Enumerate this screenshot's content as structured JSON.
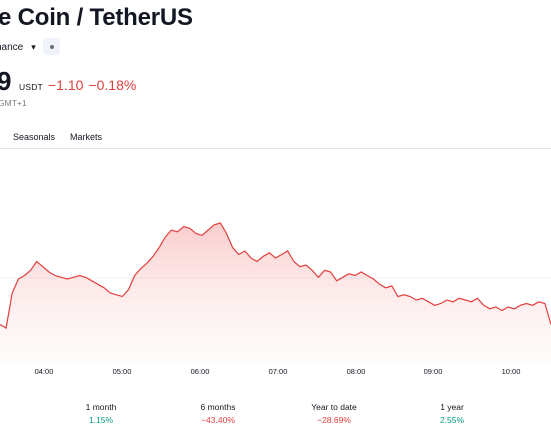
{
  "header": {
    "title": "e Coin / TetherUS",
    "exchange": "nance",
    "chevron": "▾",
    "status_icon": "dot-icon"
  },
  "quote": {
    "price": "9",
    "unit": "USDT",
    "change": "−1.10",
    "change_percent": "−0.18%",
    "timezone": "GMT+1"
  },
  "tabs": [
    {
      "label": "Seasonals"
    },
    {
      "label": "Markets"
    }
  ],
  "chart_data": {
    "type": "area",
    "line_color": "#e0403f",
    "x_ticks": [
      "04:00",
      "05:00",
      "06:00",
      "07:00",
      "08:00",
      "09:00",
      "10:00"
    ],
    "series_shape": [
      [
        0,
        0.22
      ],
      [
        0.5,
        0.2
      ],
      [
        1,
        0.4
      ],
      [
        1.5,
        0.48
      ],
      [
        2,
        0.5
      ],
      [
        2.5,
        0.53
      ],
      [
        3,
        0.58
      ],
      [
        3.5,
        0.55
      ],
      [
        4,
        0.52
      ],
      [
        4.5,
        0.5
      ],
      [
        5,
        0.49
      ],
      [
        5.5,
        0.48
      ],
      [
        6,
        0.49
      ],
      [
        6.5,
        0.5
      ],
      [
        7,
        0.49
      ],
      [
        7.5,
        0.47
      ],
      [
        8,
        0.45
      ],
      [
        8.5,
        0.43
      ],
      [
        9,
        0.4
      ],
      [
        9.5,
        0.39
      ],
      [
        10,
        0.38
      ],
      [
        10.5,
        0.42
      ],
      [
        11,
        0.5
      ],
      [
        11.5,
        0.54
      ],
      [
        12,
        0.57
      ],
      [
        12.5,
        0.61
      ],
      [
        13,
        0.66
      ],
      [
        13.5,
        0.72
      ],
      [
        14,
        0.76
      ],
      [
        14.5,
        0.75
      ],
      [
        15,
        0.78
      ],
      [
        15.5,
        0.77
      ],
      [
        16,
        0.74
      ],
      [
        16.5,
        0.73
      ],
      [
        17,
        0.76
      ],
      [
        17.5,
        0.79
      ],
      [
        18,
        0.8
      ],
      [
        18.5,
        0.74
      ],
      [
        19,
        0.66
      ],
      [
        19.5,
        0.62
      ],
      [
        20,
        0.64
      ],
      [
        20.5,
        0.6
      ],
      [
        21,
        0.58
      ],
      [
        21.5,
        0.61
      ],
      [
        22,
        0.63
      ],
      [
        22.5,
        0.6
      ],
      [
        23,
        0.62
      ],
      [
        23.5,
        0.64
      ],
      [
        24,
        0.58
      ],
      [
        24.5,
        0.55
      ],
      [
        25,
        0.56
      ],
      [
        25.5,
        0.53
      ],
      [
        26,
        0.49
      ],
      [
        26.5,
        0.53
      ],
      [
        27,
        0.52
      ],
      [
        27.5,
        0.47
      ],
      [
        28,
        0.49
      ],
      [
        28.5,
        0.51
      ],
      [
        29,
        0.5
      ],
      [
        29.5,
        0.52
      ],
      [
        30,
        0.5
      ],
      [
        30.5,
        0.48
      ],
      [
        31,
        0.45
      ],
      [
        31.5,
        0.43
      ],
      [
        32,
        0.44
      ],
      [
        32.5,
        0.38
      ],
      [
        33,
        0.39
      ],
      [
        33.5,
        0.38
      ],
      [
        34,
        0.36
      ],
      [
        34.5,
        0.37
      ],
      [
        35,
        0.35
      ],
      [
        35.5,
        0.33
      ],
      [
        36,
        0.34
      ],
      [
        36.5,
        0.36
      ],
      [
        37,
        0.35
      ],
      [
        37.5,
        0.37
      ],
      [
        38,
        0.36
      ],
      [
        38.5,
        0.35
      ],
      [
        39,
        0.37
      ],
      [
        39.5,
        0.33
      ],
      [
        40,
        0.31
      ],
      [
        40.5,
        0.32
      ],
      [
        41,
        0.3
      ],
      [
        41.5,
        0.32
      ],
      [
        42,
        0.31
      ],
      [
        42.5,
        0.33
      ],
      [
        43,
        0.34
      ],
      [
        43.5,
        0.33
      ],
      [
        44,
        0.35
      ],
      [
        44.5,
        0.34
      ],
      [
        45,
        0.22
      ]
    ]
  },
  "performance": [
    {
      "label": "1 month",
      "value": "1.15%",
      "trend": "pos"
    },
    {
      "label": "6 months",
      "value": "−43.40%",
      "trend": "neg"
    },
    {
      "label": "Year to date",
      "value": "−28.69%",
      "trend": "neg"
    },
    {
      "label": "1 year",
      "value": "2.55%",
      "trend": "pos"
    }
  ]
}
